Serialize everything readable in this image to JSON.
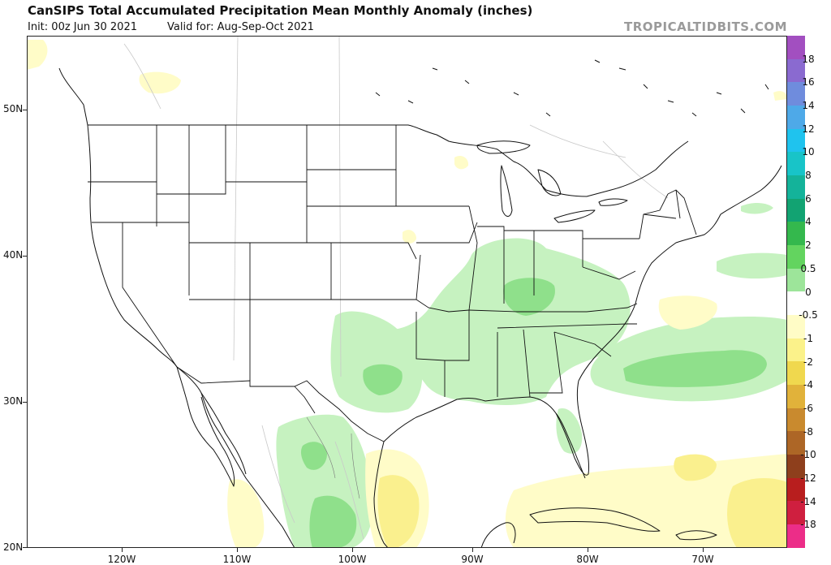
{
  "header": {
    "title": "CanSIPS Total Accumulated Precipitation Mean Monthly Anomaly (inches)",
    "init": "Init: 00z Jun 30 2021",
    "valid": "Valid for: Aug-Sep-Oct 2021",
    "brand": "TROPICALTIDBITS.COM"
  },
  "axes": {
    "lat_labels": [
      "50N",
      "40N",
      "30N",
      "20N"
    ],
    "lon_labels": [
      "120W",
      "110W",
      "100W",
      "90W",
      "80W",
      "70W"
    ]
  },
  "colorbar": {
    "labels": [
      "18",
      "16",
      "14",
      "12",
      "10",
      "8",
      "6",
      "4",
      "2",
      "0.5",
      "0",
      "-0.5",
      "-1",
      "-2",
      "-4",
      "-6",
      "-8",
      "-10",
      "-12",
      "-14",
      "-18"
    ],
    "colors": [
      "#a24fc0",
      "#8a6ad0",
      "#6f8cdd",
      "#4ea9e8",
      "#1fc3ee",
      "#18c4c8",
      "#14b39a",
      "#12a372",
      "#34b84d",
      "#63d45f",
      "#9de59a",
      "#ffffff",
      "#fffcc6",
      "#fbf28a",
      "#f0d84e",
      "#e1b23a",
      "#c98a2e",
      "#ad6626",
      "#8e3f1c",
      "#b81e1e",
      "#cf1f3f",
      "#ec2d88"
    ]
  },
  "anomaly_regions": {
    "wet_05": "#c6f2c0",
    "wet_2": "#8fe08b",
    "dry_05": "#fffcc8",
    "dry_1": "#faf08e"
  }
}
